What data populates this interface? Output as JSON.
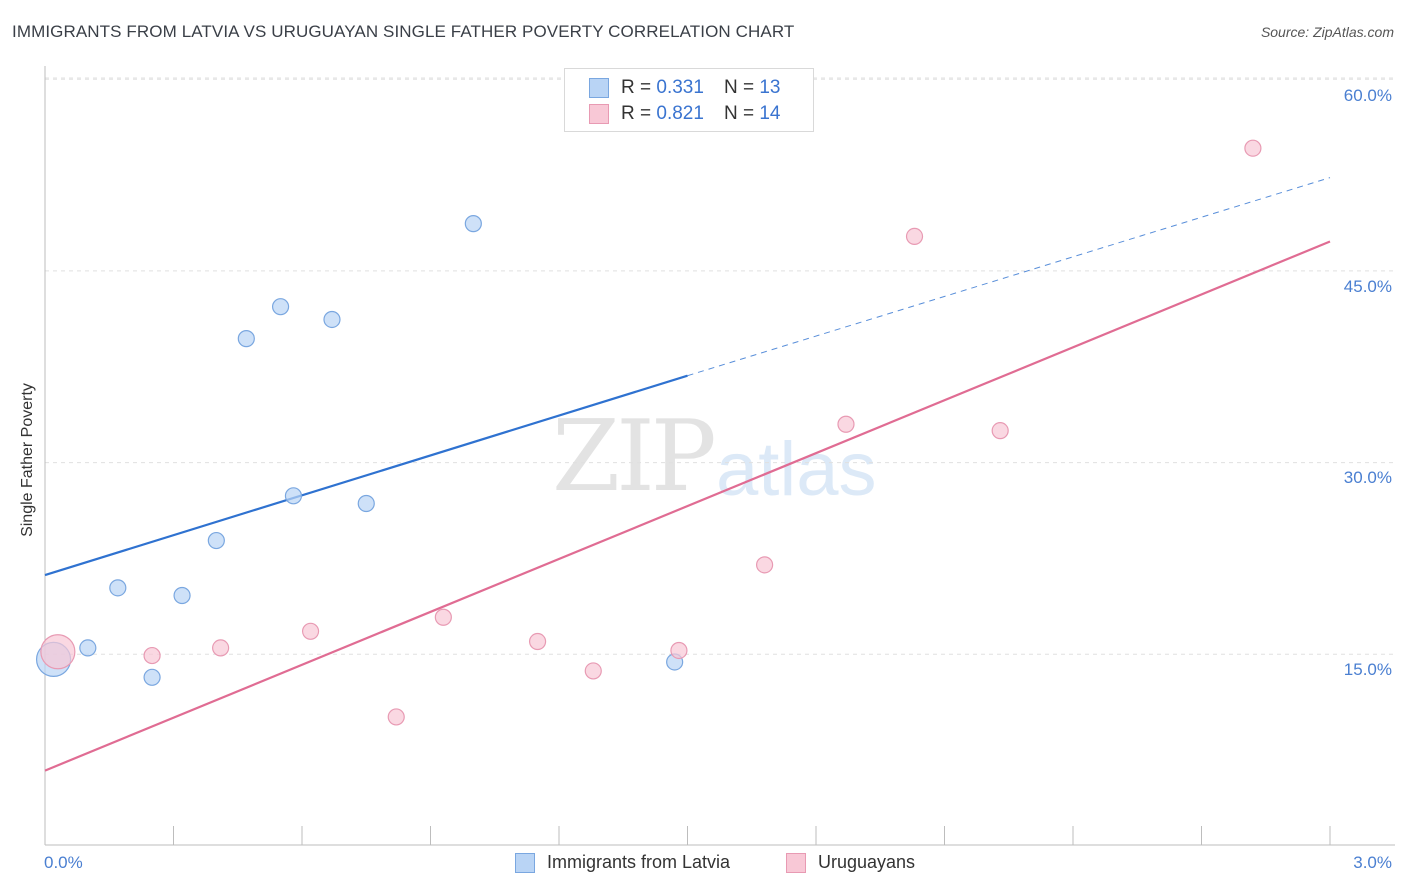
{
  "header": {
    "title": "IMMIGRANTS FROM LATVIA VS URUGUAYAN SINGLE FATHER POVERTY CORRELATION CHART",
    "source": "Source: ZipAtlas.com"
  },
  "watermark": {
    "zip": "ZIP",
    "atlas": "atlas"
  },
  "legend_top": {
    "rows": [
      {
        "r_label": "R =",
        "r_value": "0.331",
        "n_label": "N =",
        "n_value": "13"
      },
      {
        "r_label": "R =",
        "r_value": "0.821",
        "n_label": "N =",
        "n_value": "14"
      }
    ]
  },
  "legend_bottom": {
    "series": [
      "Immigrants from Latvia",
      "Uruguayans"
    ]
  },
  "axes": {
    "ylabel": "Single Father Poverty",
    "x_ticks": [
      "0.0%",
      "3.0%"
    ],
    "y_ticks": [
      "60.0%",
      "45.0%",
      "30.0%",
      "15.0%"
    ]
  },
  "colors": {
    "blue_fill": "#b9d4f5",
    "blue_stroke": "#7aa7e0",
    "blue_line": "#2f72d0",
    "pink_fill": "#f8c8d6",
    "pink_stroke": "#e89ab3",
    "pink_line": "#e06c93",
    "grid": "#e0e0e0",
    "tick_text": "#4a7fd1"
  },
  "chart_data": {
    "type": "scatter",
    "xlim": [
      0,
      3.0
    ],
    "ylim": [
      0,
      62
    ],
    "x_unit": "%",
    "y_unit": "%",
    "grid": true,
    "series": [
      {
        "name": "Immigrants from Latvia",
        "points": [
          {
            "x": 0.02,
            "y": 14.6,
            "size": "large"
          },
          {
            "x": 0.1,
            "y": 15.5
          },
          {
            "x": 0.17,
            "y": 20.2
          },
          {
            "x": 0.25,
            "y": 13.2
          },
          {
            "x": 0.32,
            "y": 19.6
          },
          {
            "x": 0.4,
            "y": 23.9
          },
          {
            "x": 0.47,
            "y": 39.7
          },
          {
            "x": 0.55,
            "y": 42.2
          },
          {
            "x": 0.58,
            "y": 27.4
          },
          {
            "x": 0.67,
            "y": 41.2
          },
          {
            "x": 0.75,
            "y": 26.8
          },
          {
            "x": 1.0,
            "y": 48.7
          },
          {
            "x": 1.47,
            "y": 14.4
          }
        ],
        "trend": {
          "x_start": 0.0,
          "y_start": 21.2,
          "x_solid_end": 1.5,
          "y_solid_end": 36.8,
          "x_end": 3.0,
          "y_end": 52.3
        }
      },
      {
        "name": "Uruguayans",
        "points": [
          {
            "x": 0.03,
            "y": 15.2,
            "size": "large"
          },
          {
            "x": 0.25,
            "y": 14.9
          },
          {
            "x": 0.41,
            "y": 15.5
          },
          {
            "x": 0.62,
            "y": 16.8
          },
          {
            "x": 0.82,
            "y": 10.1
          },
          {
            "x": 0.93,
            "y": 17.9
          },
          {
            "x": 1.15,
            "y": 16.0
          },
          {
            "x": 1.28,
            "y": 13.7
          },
          {
            "x": 1.48,
            "y": 15.3
          },
          {
            "x": 1.68,
            "y": 22.0
          },
          {
            "x": 1.87,
            "y": 33.0
          },
          {
            "x": 2.03,
            "y": 47.7
          },
          {
            "x": 2.23,
            "y": 32.5
          },
          {
            "x": 2.82,
            "y": 54.6
          }
        ],
        "trend": {
          "x_start": 0.0,
          "y_start": 5.9,
          "x_end": 3.0,
          "y_end": 47.3
        }
      }
    ]
  }
}
